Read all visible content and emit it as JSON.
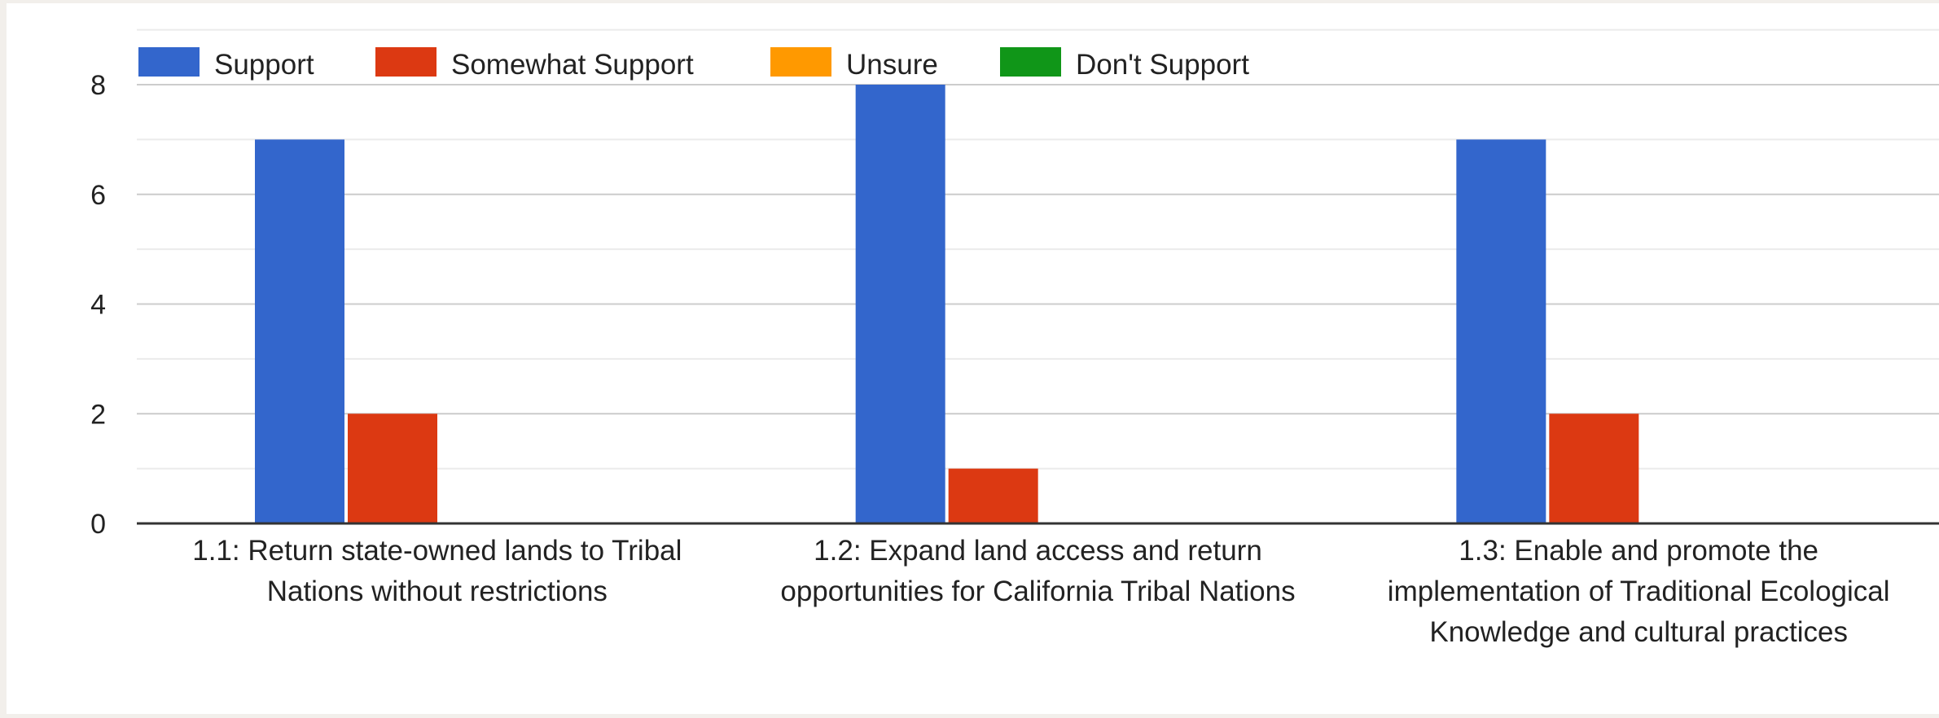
{
  "chart_data": {
    "type": "bar",
    "title": "",
    "xlabel": "",
    "ylabel": "",
    "categories": [
      [
        "1.1: Return state-owned lands to Tribal",
        "Nations without restrictions"
      ],
      [
        "1.2: Expand land access and return",
        "opportunities for California Tribal Nations"
      ],
      [
        "1.3: Enable and promote the",
        "implementation of Traditional Ecological",
        "Knowledge and cultural practices"
      ]
    ],
    "series": [
      {
        "name": "Support",
        "color": "#3366cc",
        "values": [
          7,
          8,
          7
        ]
      },
      {
        "name": "Somewhat Support",
        "color": "#dc3912",
        "values": [
          2,
          1,
          2
        ]
      },
      {
        "name": "Unsure",
        "color": "#ff9900",
        "values": [
          0,
          0,
          0
        ]
      },
      {
        "name": "Don't Support",
        "color": "#109618",
        "values": [
          0,
          0,
          0
        ]
      }
    ],
    "ylim": [
      0,
      8
    ],
    "yticks": [
      0,
      2,
      4,
      6,
      8
    ],
    "grid": true,
    "minor_grid": true,
    "legend_position": "top-left"
  }
}
